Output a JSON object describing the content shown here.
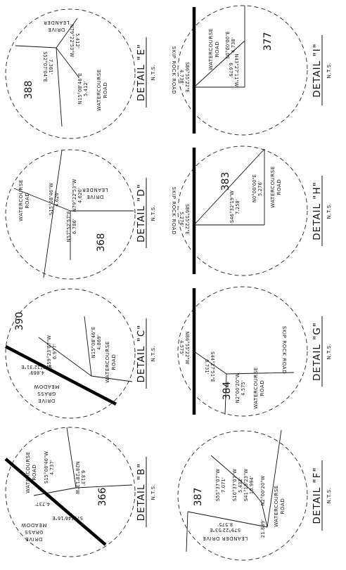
{
  "details": [
    {
      "title": "DETAIL \"B\"",
      "scale": "N.T.S.",
      "lots": [
        "366"
      ],
      "bearings": [
        "S15°08'46\"W",
        "4.737'",
        "N28°28'13\"W",
        "6.813'",
        "S71°46'16\"E",
        "4.737'"
      ],
      "roads": [
        "WATERCOURSE",
        "ROAD",
        "MEADOW",
        "GRASS",
        "DRIVE"
      ]
    },
    {
      "title": "DETAIL \"C\"",
      "scale": "N.T.S.",
      "lots": [
        "390"
      ],
      "bearings": [
        "S59°23'07\"W",
        "6.977'",
        "N15°08'46\"E",
        "4.869'",
        "S76°22'31\"E",
        "4.869'"
      ],
      "roads": [
        "WATERCOURSE",
        "ROAD",
        "MEADOW",
        "GRASS",
        "DRIVE"
      ]
    },
    {
      "title": "DETAIL \"D\"",
      "scale": "N.T.S.",
      "lots": [
        "368"
      ],
      "bearings": [
        "S15°08'46\"W",
        "4.620'",
        "N79°22'53\"W",
        "4.620'",
        "N57°52'57\"E",
        "6.786'"
      ],
      "roads": [
        "WATERCOURSE",
        "ROAD",
        "LEANDER",
        "DRIVE"
      ]
    },
    {
      "title": "DETAIL \"E\"",
      "scale": "N.T.S.",
      "lots": [
        "388"
      ],
      "bearings": [
        "N79°22'53\"W",
        "5.412'",
        "S52°07'04\"E",
        "7.361'",
        "N15°08'46\"E",
        "5.412'"
      ],
      "roads": [
        "LEANDER",
        "DRIVE",
        "WATERCOURSE",
        "ROAD"
      ]
    },
    {
      "title": "DETAIL \"F\"",
      "scale": "N.T.S.",
      "lots": [
        "387"
      ],
      "bearings": [
        "S55°37'07\"W",
        "7.071'",
        "S10°37'07\"W",
        "5.432'",
        "S41°18'23\"W",
        "10.994'",
        "N2°00'20\"W",
        "21.889'",
        "S79°22'53\"E",
        "8.575'"
      ],
      "roads": [
        "LEANDER DRIVE",
        "WATERCOURSE",
        "ROAD"
      ]
    },
    {
      "title": "DETAIL \"G\"",
      "scale": "N.T.S.",
      "lots": [
        "384"
      ],
      "bearings": [
        "N86°55'22\"W",
        "4.575'",
        "S44°27'51\"E",
        "6.731'",
        "N2°00'20\"W",
        "4.575'"
      ],
      "roads": [
        "SKIP ROCK ROAD",
        "WATERCOURSE",
        "ROAD"
      ]
    },
    {
      "title": "DETAIL \"H\"",
      "scale": "N.T.S.",
      "lots": [
        "383"
      ],
      "bearings": [
        "S46°32'19\"W",
        "7.258'",
        "N0°00'00\"E",
        "5.276'",
        "S86°55'22\"E",
        "5.276'"
      ],
      "roads": [
        "SKIP ROCK ROAD",
        "WATERCOURSE",
        "ROAD"
      ]
    },
    {
      "title": "DETAIL \"I\"",
      "scale": "N.T.S.",
      "lots": [
        "377"
      ],
      "bearings": [
        "S0°00'00\"E",
        "4.738'",
        "N43°27'11\"W",
        "6.679'",
        "S86°55'22\"E",
        "4.738'"
      ],
      "roads": [
        "SKIP ROCK ROAD",
        "WATERCOURSE",
        "ROAD"
      ]
    }
  ]
}
